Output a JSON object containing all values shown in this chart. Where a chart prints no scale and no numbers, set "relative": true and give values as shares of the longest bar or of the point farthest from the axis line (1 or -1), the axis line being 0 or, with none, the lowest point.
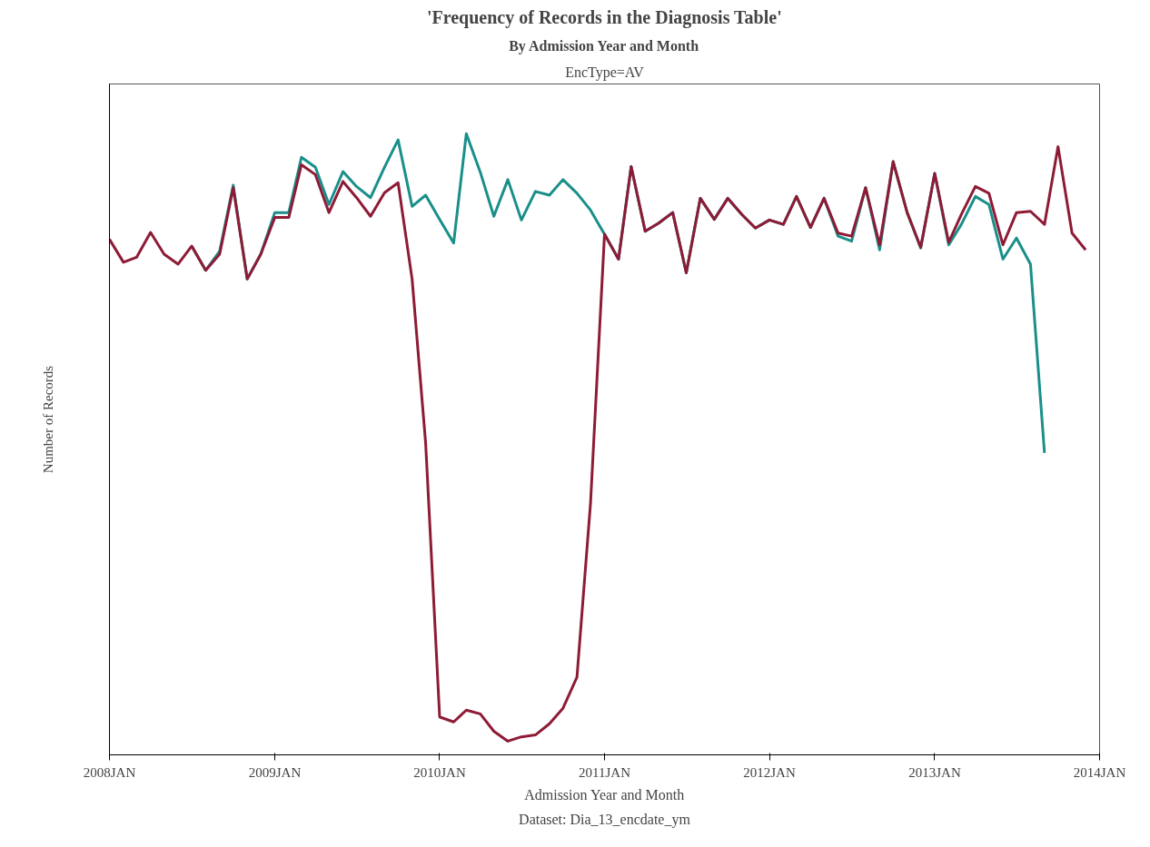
{
  "chart_data": {
    "type": "line",
    "title": "'Frequency of Records in the Diagnosis Table'",
    "subtitle": "By Admission Year and Month",
    "annotations": [
      "EncType=AV",
      "Dataset: Dia_13_encdate_ym"
    ],
    "xlabel": "Admission Year and Month",
    "ylabel": "Number of Records",
    "relative": true,
    "x": [
      "2008-01",
      "2008-02",
      "2008-03",
      "2008-04",
      "2008-05",
      "2008-06",
      "2008-07",
      "2008-08",
      "2008-09",
      "2008-10",
      "2008-11",
      "2008-12",
      "2009-01",
      "2009-02",
      "2009-03",
      "2009-04",
      "2009-05",
      "2009-06",
      "2009-07",
      "2009-08",
      "2009-09",
      "2009-10",
      "2009-11",
      "2009-12",
      "2010-01",
      "2010-02",
      "2010-03",
      "2010-04",
      "2010-05",
      "2010-06",
      "2010-07",
      "2010-08",
      "2010-09",
      "2010-10",
      "2010-11",
      "2010-12",
      "2011-01",
      "2011-02",
      "2011-03",
      "2011-04",
      "2011-05",
      "2011-06",
      "2011-07",
      "2011-08",
      "2011-09",
      "2011-10",
      "2011-11",
      "2011-12",
      "2012-01",
      "2012-02",
      "2012-03",
      "2012-04",
      "2012-05",
      "2012-06",
      "2012-07",
      "2012-08",
      "2012-09",
      "2012-10",
      "2012-11",
      "2012-12",
      "2013-01",
      "2013-02",
      "2013-03",
      "2013-04",
      "2013-05",
      "2013-06",
      "2013-07",
      "2013-08",
      "2013-09",
      "2013-10",
      "2013-11",
      "2013-12"
    ],
    "xlim": [
      "2008-01",
      "2014-01"
    ],
    "xticks": [
      {
        "value": "2008-01",
        "label": "2008JAN"
      },
      {
        "value": "2009-01",
        "label": "2009JAN"
      },
      {
        "value": "2010-01",
        "label": "2010JAN"
      },
      {
        "value": "2011-01",
        "label": "2011JAN"
      },
      {
        "value": "2012-01",
        "label": "2012JAN"
      },
      {
        "value": "2013-01",
        "label": "2013JAN"
      },
      {
        "value": "2014-01",
        "label": "2014JAN"
      }
    ],
    "series": [
      {
        "color": "#1a8f8a",
        "values": [
          null,
          null,
          null,
          null,
          null,
          null,
          0.819,
          0.78,
          0.811,
          0.917,
          0.766,
          0.806,
          0.873,
          0.873,
          0.962,
          0.946,
          0.886,
          0.939,
          0.915,
          0.897,
          0.946,
          0.99,
          0.883,
          0.901,
          0.862,
          0.824,
          1.0,
          0.938,
          0.867,
          0.926,
          0.861,
          0.907,
          0.901,
          0.926,
          0.904,
          0.877,
          0.838,
          0.798,
          0.947,
          0.843,
          0.856,
          0.873,
          0.776,
          0.896,
          0.862,
          0.896,
          0.87,
          0.848,
          0.861,
          0.854,
          0.899,
          0.849,
          0.896,
          0.835,
          0.827,
          0.913,
          0.813,
          0.955,
          0.873,
          0.816,
          0.936,
          0.821,
          0.854,
          0.899,
          0.886,
          0.798,
          0.832,
          0.79,
          0.486,
          null,
          null,
          null
        ]
      },
      {
        "color": "#8e1b36",
        "values": [
          0.83,
          0.793,
          0.801,
          0.841,
          0.806,
          0.79,
          0.819,
          0.78,
          0.806,
          0.913,
          0.766,
          0.806,
          0.865,
          0.865,
          0.95,
          0.934,
          0.873,
          0.923,
          0.897,
          0.867,
          0.905,
          0.921,
          0.766,
          0.502,
          0.061,
          0.053,
          0.072,
          0.066,
          0.038,
          0.022,
          0.029,
          0.032,
          0.05,
          0.075,
          0.125,
          0.405,
          0.838,
          0.798,
          0.947,
          0.843,
          0.856,
          0.873,
          0.776,
          0.896,
          0.862,
          0.896,
          0.87,
          0.848,
          0.861,
          0.854,
          0.899,
          0.849,
          0.896,
          0.84,
          0.835,
          0.913,
          0.821,
          0.955,
          0.873,
          0.817,
          0.936,
          0.825,
          0.87,
          0.915,
          0.904,
          0.821,
          0.873,
          0.875,
          0.854,
          0.979,
          0.84,
          0.813
        ]
      }
    ]
  }
}
